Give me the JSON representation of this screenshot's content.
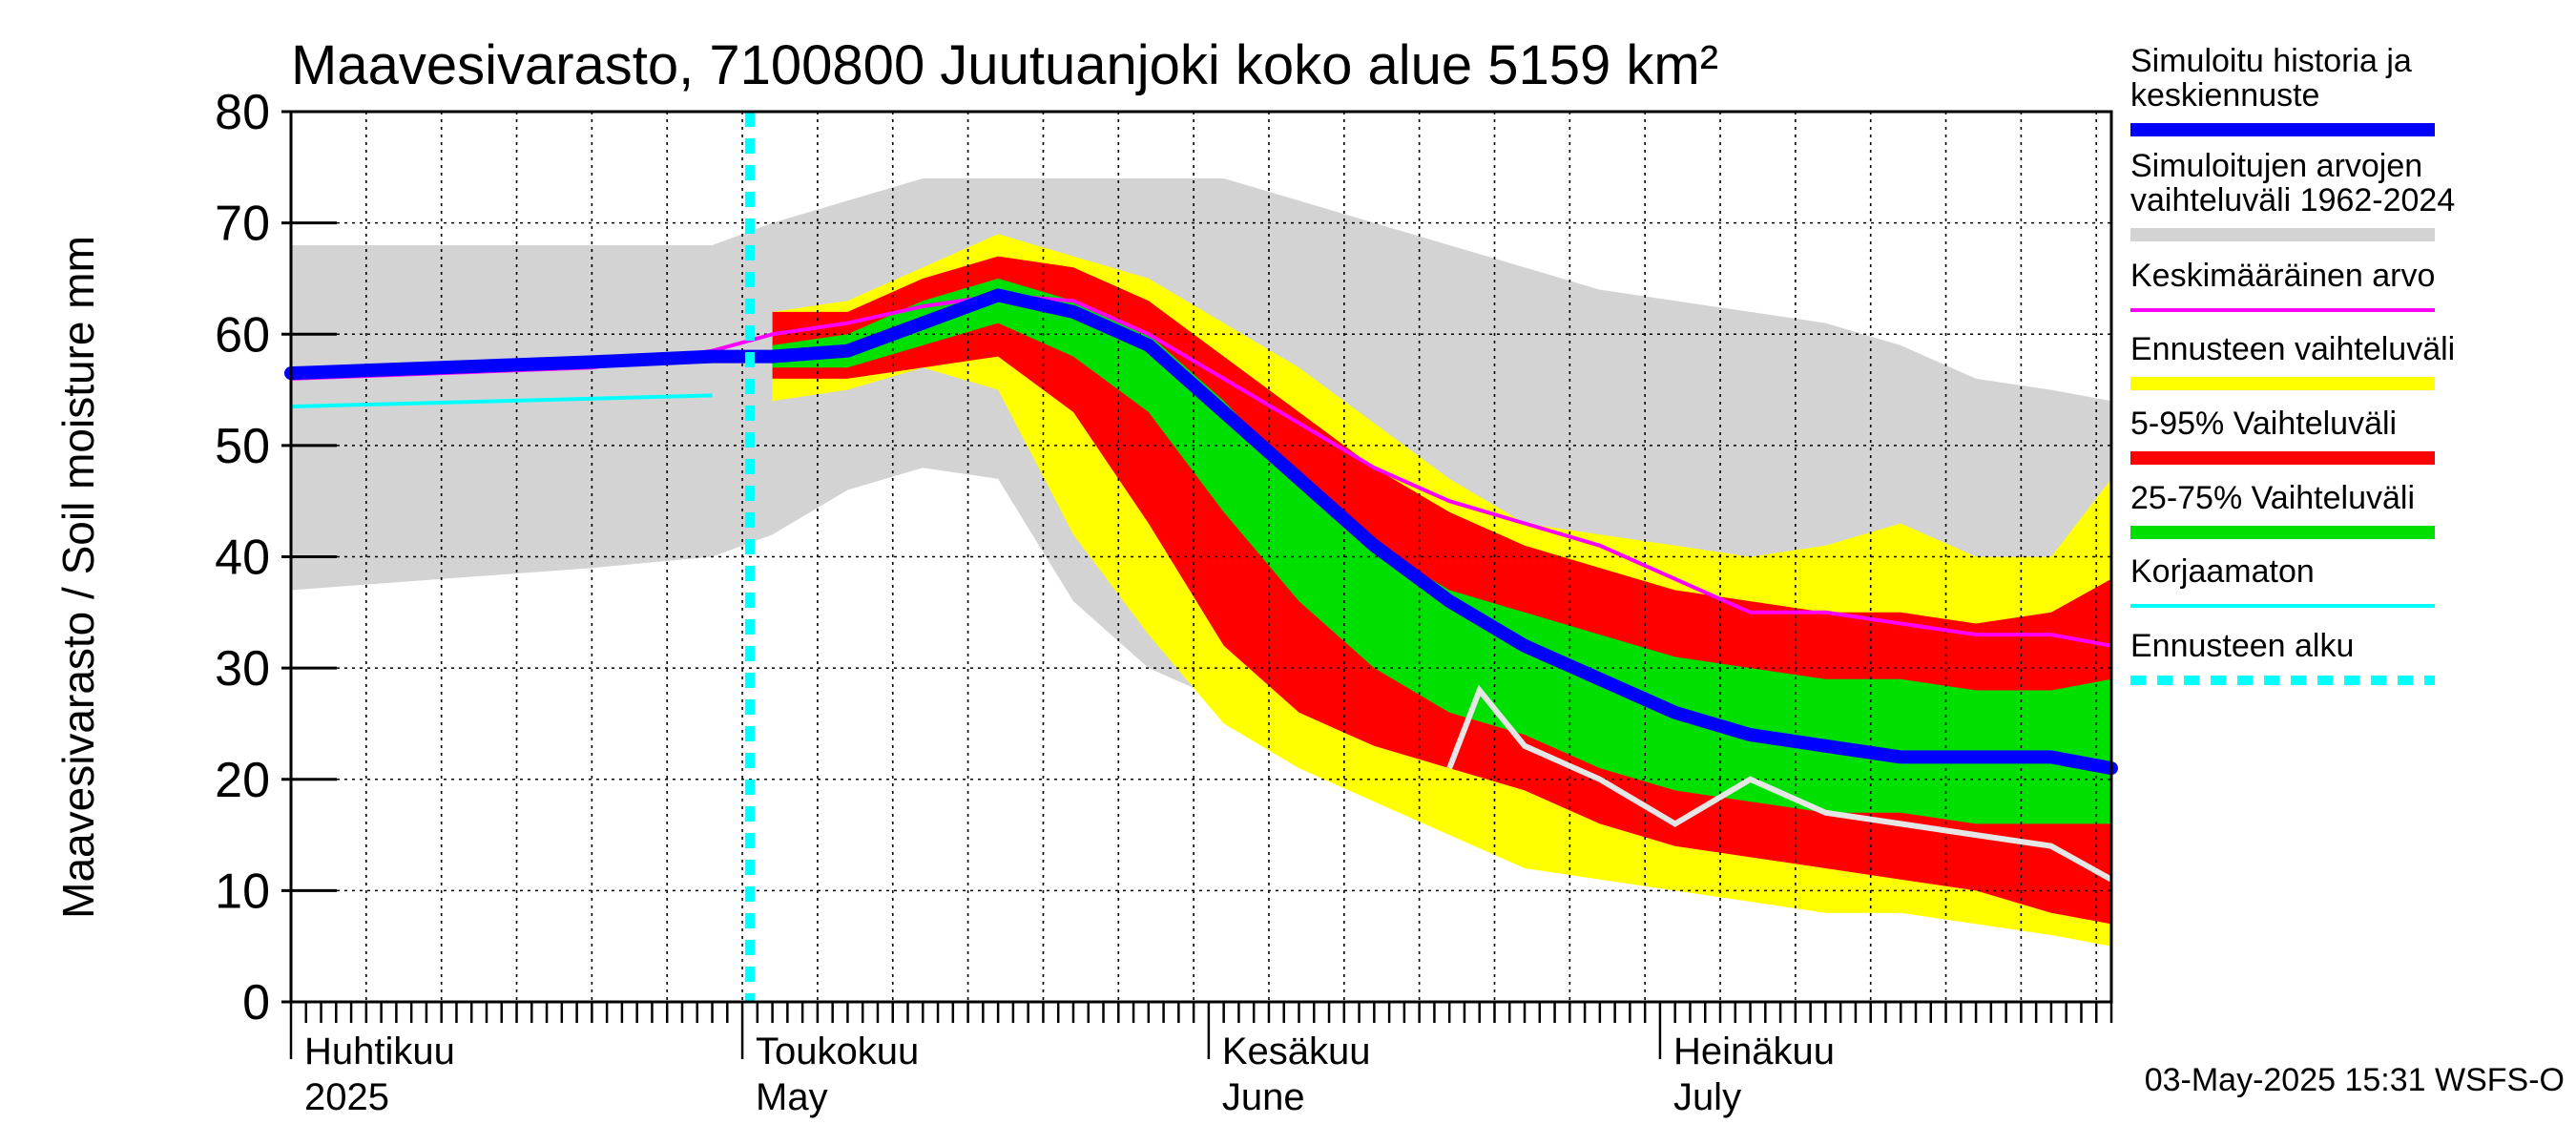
{
  "chart_data": {
    "type": "area",
    "title": "Maavesivarasto, 7100800 Juutuanjoki koko alue 5159 km²",
    "ylabel": "Maavesivarasto / Soil moisture   mm",
    "ylim": [
      0,
      80
    ],
    "yticks": [
      0,
      10,
      20,
      30,
      40,
      50,
      60,
      70,
      80
    ],
    "xlim_days": [
      0,
      121
    ],
    "months": [
      {
        "day": 0,
        "fi": "Huhtikuu",
        "en": "2025"
      },
      {
        "day": 30,
        "fi": "Toukokuu",
        "en": "May"
      },
      {
        "day": 61,
        "fi": "Kesäkuu",
        "en": "June"
      },
      {
        "day": 91,
        "fi": "Heinäkuu",
        "en": "July"
      }
    ],
    "forecast_start_day": 30.5,
    "x": [
      0,
      10,
      20,
      28,
      32,
      37,
      42,
      47,
      52,
      57,
      62,
      67,
      72,
      77,
      82,
      87,
      92,
      97,
      102,
      107,
      112,
      117,
      121
    ],
    "series": [
      {
        "name": "Simuloitujen arvojen vaihteluväli 1962-2024",
        "color": "#d3d3d3",
        "upper": [
          68,
          68,
          68,
          68,
          70,
          72,
          74,
          74,
          74,
          74,
          74,
          72,
          70,
          68,
          66,
          64,
          63,
          62,
          61,
          59,
          56,
          55,
          54
        ],
        "lower": [
          37,
          38,
          39,
          40,
          42,
          46,
          48,
          47,
          36,
          30,
          27,
          25,
          23,
          21,
          21,
          20,
          19,
          19,
          19,
          18,
          17,
          16,
          15
        ]
      },
      {
        "name": "Ennusteen vaihteluväli",
        "color": "#ffff00",
        "upper": [
          null,
          null,
          null,
          null,
          62,
          63,
          66,
          69,
          67,
          65,
          61,
          57,
          52,
          47,
          43,
          42,
          41,
          40,
          41,
          43,
          40,
          40,
          47
        ],
        "lower": [
          null,
          null,
          null,
          null,
          54,
          55,
          57,
          55,
          42,
          33,
          25,
          21,
          18,
          15,
          12,
          11,
          10,
          9,
          8,
          8,
          7,
          6,
          5
        ]
      },
      {
        "name": "5-95% Vaihteluväli",
        "color": "#ff0000",
        "upper": [
          null,
          null,
          null,
          null,
          62,
          62,
          65,
          67,
          66,
          63,
          58,
          53,
          48,
          44,
          41,
          39,
          37,
          36,
          35,
          35,
          34,
          35,
          38
        ]
      },
      {
        "name": "25-75% Vaihteluväli",
        "color": "#00e000",
        "upper": [
          null,
          null,
          null,
          null,
          59,
          60,
          63,
          65,
          63,
          60,
          54,
          47,
          41,
          37,
          35,
          33,
          31,
          30,
          29,
          29,
          28,
          28,
          29
        ],
        "lower": [
          null,
          null,
          null,
          null,
          57,
          57,
          59,
          61,
          58,
          53,
          44,
          36,
          30,
          26,
          24,
          21,
          19,
          18,
          17,
          17,
          16,
          16,
          16
        ]
      },
      {
        "name": "Keskimääräinen arvo",
        "color": "#ff00ff",
        "values": [
          56,
          56.5,
          57,
          58.5,
          60,
          61,
          62.5,
          63.5,
          63,
          60,
          56,
          52,
          48,
          45,
          43,
          41,
          38,
          35,
          35,
          34,
          33,
          33,
          32
        ]
      },
      {
        "name": "Simuloitu historia ja keskiennuste",
        "color": "#0000ff",
        "values": [
          56.5,
          57,
          57.5,
          58,
          58,
          58.5,
          61,
          63.5,
          62,
          59,
          53,
          47,
          41,
          36,
          32,
          29,
          26,
          24,
          23,
          22,
          22,
          22,
          21
        ]
      },
      {
        "name": "Korjaamaton",
        "color": "#00ffff",
        "x": [
          0,
          28
        ],
        "values": [
          53.5,
          54.5
        ]
      },
      {
        "name": "Ennusteen alku",
        "color": "#00ffff"
      }
    ],
    "extra_lines": {
      "lower_5_95": [
        null,
        null,
        null,
        null,
        56,
        56,
        57,
        58,
        53,
        43,
        32,
        26,
        23,
        21,
        19,
        16,
        14,
        13,
        12,
        11,
        10,
        8,
        7
      ],
      "white_member_x": [
        77,
        79,
        82,
        87,
        92,
        97,
        102,
        107,
        112,
        117,
        121
      ],
      "white_member_y": [
        21,
        28,
        23,
        20,
        16,
        20,
        17,
        16,
        15,
        14,
        11
      ]
    },
    "legend": [
      "Simuloitu historia ja keskiennuste",
      "Simuloitujen arvojen vaihteluväli 1962-2024",
      "Keskimääräinen arvo",
      "Ennusteen vaihteluväli",
      "5-95% Vaihteluväli",
      "25-75% Vaihteluväli",
      "Korjaamaton",
      "Ennusteen alku"
    ],
    "legend_lines": [
      [
        "Simuloitu historia ja",
        "keskiennuste"
      ],
      [
        "Simuloitujen arvojen",
        "vaihteluväli 1962-2024"
      ],
      [
        "Keskimääräinen arvo"
      ],
      [
        "Ennusteen vaihteluväli"
      ],
      [
        "5-95% Vaihteluväli"
      ],
      [
        "25-75% Vaihteluväli"
      ],
      [
        "Korjaamaton"
      ],
      [
        "Ennusteen alku"
      ]
    ],
    "footer": "03-May-2025 15:31 WSFS-O"
  }
}
